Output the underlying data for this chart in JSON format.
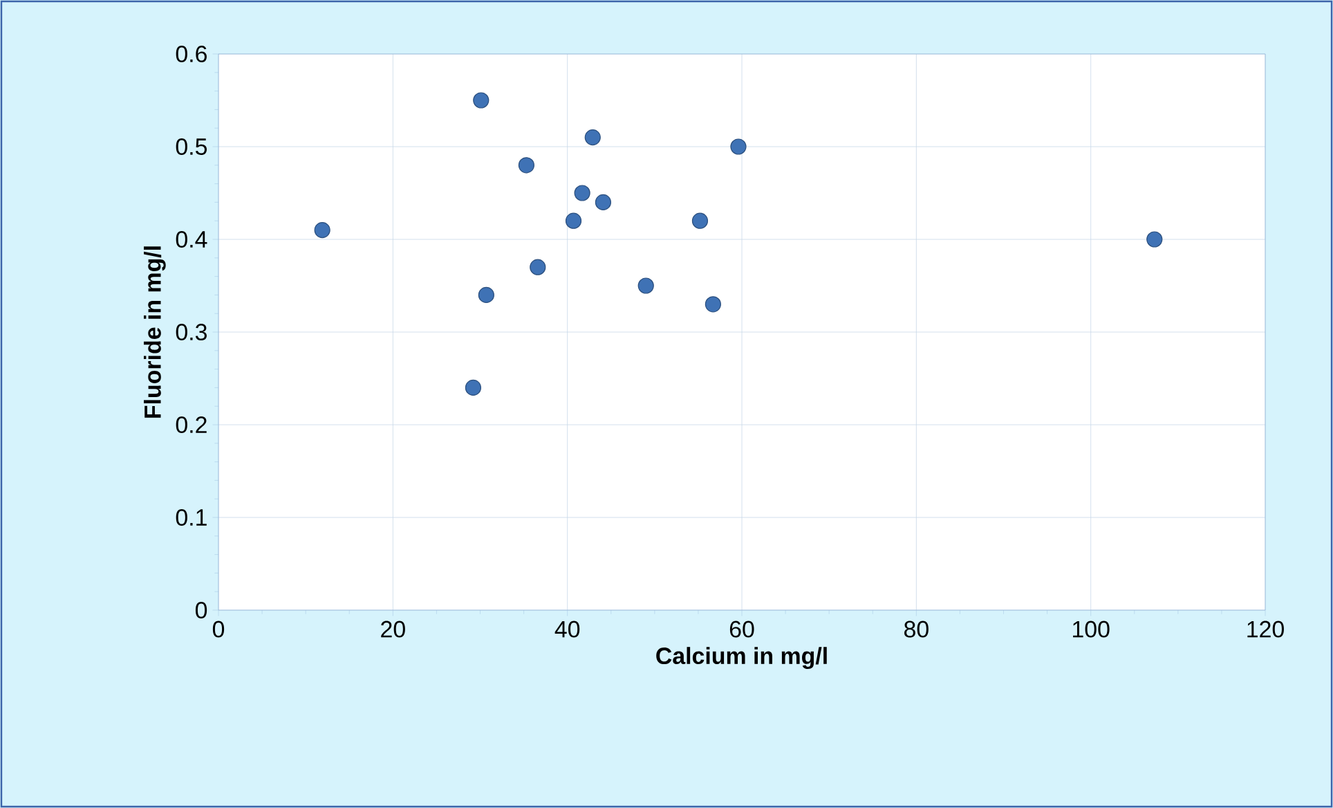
{
  "chart_data": {
    "type": "scatter",
    "xlabel": "Calcium in mg/l",
    "ylabel": "Fluoride in mg/l",
    "x": [
      11.9,
      30.1,
      29.2,
      30.7,
      35.3,
      36.6,
      40.7,
      41.7,
      42.9,
      44.1,
      49.0,
      55.2,
      56.7,
      59.6,
      107.3
    ],
    "values": [
      0.41,
      0.55,
      0.24,
      0.34,
      0.48,
      0.37,
      0.42,
      0.45,
      0.51,
      0.44,
      0.35,
      0.42,
      0.33,
      0.5,
      0.4
    ],
    "color": "#3f72b5",
    "marker": "circle",
    "xlim": [
      0,
      120
    ],
    "xticks": [
      0,
      20,
      40,
      60,
      80,
      100,
      120
    ],
    "ylim": [
      0,
      0.6
    ],
    "yticks": [
      0,
      0.1,
      0.2,
      0.3,
      0.4,
      0.5,
      0.6
    ],
    "grid": true
  }
}
